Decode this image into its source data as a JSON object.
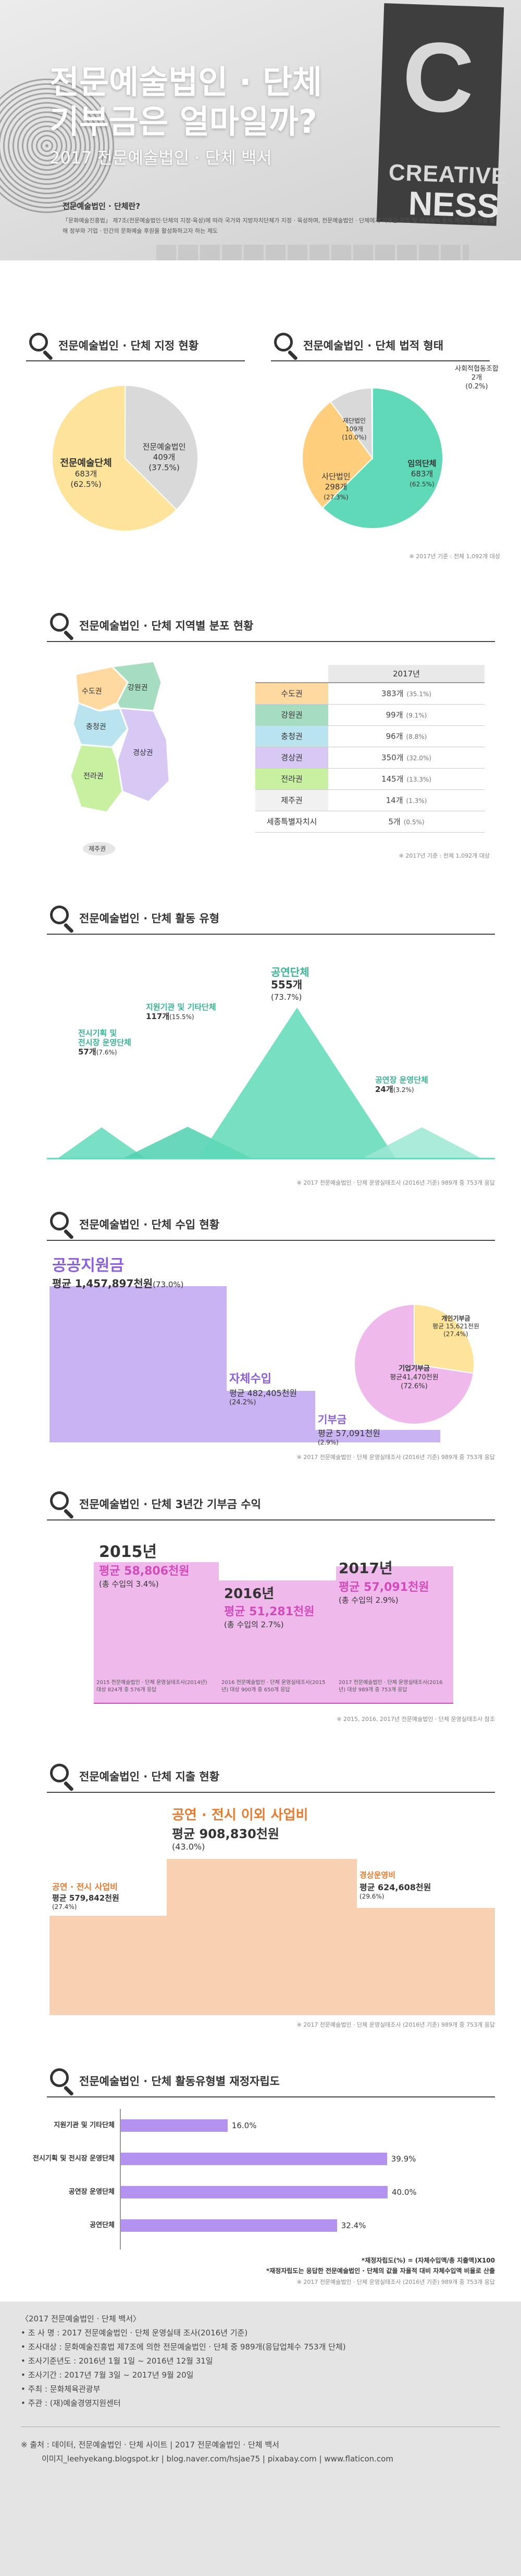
{
  "hero": {
    "title_line1": "전문예술법인 · 단체",
    "title_line2": "기부금은 얼마일까?",
    "subtitle": "2017 전문예술법인 · 단체 백서",
    "sticky_letter": "C",
    "sticky_word1": "CREATIVE",
    "sticky_word2": "NESS",
    "definition_title": "전문예술법인 · 단체란?",
    "definition_text": "「문화예술진흥법」 제7조(전문예술법인·단체의 지정·육성)에 따라 국가와 지방자치단체가 지정 · 육성하며, 전문예술법인 · 단체에게 기부금 모집 및 세제혜택 등의 제도적 지원을 통해 정부와 기업 · 민간의 문화예술 후원을 활성화하고자 하는 제도"
  },
  "sec1": {
    "title_left": "전문예술법인 · 단체 지정 현황",
    "title_right": "전문예술법인 · 단체 법적 형태",
    "source": "※ 2017년 기준 : 전체 1,092개 대상"
  },
  "chart_designation": {
    "type": "pie",
    "slices": [
      {
        "name": "전문예술단체",
        "value": 683,
        "value_text": "683개",
        "pct_text": "(62.5%)",
        "color": "#fde49a"
      },
      {
        "name": "전문예술법인",
        "value": 409,
        "value_text": "409개",
        "pct_text": "(37.5%)",
        "color": "#d9d9d9"
      }
    ]
  },
  "chart_legal": {
    "type": "pie",
    "slices": [
      {
        "name": "임의단체",
        "value": 683,
        "value_text": "683개",
        "pct_text": "(62.5%)",
        "color": "#5fd9b7"
      },
      {
        "name": "사단법인",
        "value": 298,
        "value_text": "298개",
        "pct_text": "(27.3%)",
        "color": "#ffcf7e"
      },
      {
        "name": "재단법인",
        "value": 109,
        "value_text": "109개",
        "pct_text": "(10.0%)",
        "color": "#d9d9d9"
      },
      {
        "name": "사회적협동조합",
        "value": 2,
        "value_text": "2개",
        "pct_text": "(0.2%)",
        "color": "#9a9a9a"
      }
    ]
  },
  "sec2": {
    "title": "전문예술법인 · 단체 지역별 분포 현황",
    "year_header": "2017년",
    "source": "※ 2017년 기준 : 전체 1,092개 대상",
    "regions": [
      {
        "name": "수도권",
        "value": "383개",
        "pct": "(35.1%)",
        "color": "#ffd9a0"
      },
      {
        "name": "강원권",
        "value": "99개",
        "pct": "(9.1%)",
        "color": "#a6ddc1"
      },
      {
        "name": "충청권",
        "value": "96개",
        "pct": "(8.8%)",
        "color": "#b9e4ef"
      },
      {
        "name": "경상권",
        "value": "350개",
        "pct": "(32.0%)",
        "color": "#d7c9f4"
      },
      {
        "name": "전라권",
        "value": "145개",
        "pct": "(13.3%)",
        "color": "#c7f0a0"
      },
      {
        "name": "제주권",
        "value": "14개",
        "pct": "(1.3%)",
        "color": "#f1f1f1"
      },
      {
        "name": "세종특별자치시",
        "value": "5개",
        "pct": "(0.5%)",
        "color": "#ffffff"
      }
    ],
    "map_labels": [
      "수도권",
      "강원권",
      "충청권",
      "경상권",
      "전라권",
      "제주권"
    ]
  },
  "sec3": {
    "title": "전문예술법인 · 단체 활동 유형",
    "source": "※ 2017 전문예술법인 · 단체 운영실태조사 (2016년 기준) 989개 중 753개 응답",
    "items": [
      {
        "name_line1": "전시기획 및",
        "name_line2": "전시장 운영단체",
        "value": 57,
        "value_text": "57개",
        "pct": "(7.6%)"
      },
      {
        "name_line1": "지원기관 및 기타단체",
        "name_line2": "",
        "value": 117,
        "value_text": "117개",
        "pct": "(15.5%)"
      },
      {
        "name_line1": "공연단체",
        "name_line2": "",
        "value": 555,
        "value_text": "555개",
        "pct": "(73.7%)"
      },
      {
        "name_line1": "공연장 운영단체",
        "name_line2": "",
        "value": 24,
        "value_text": "24개",
        "pct": "(3.2%)"
      }
    ]
  },
  "sec4": {
    "title": "전문예술법인 · 단체 수입 현황",
    "source": "※ 2017 전문예술법인 · 단체 운영실태조사 (2016년 기준) 989개 중 753개 응답",
    "bars": [
      {
        "name": "공공지원금",
        "value": 1457897,
        "text": "평균 1,457,897천원",
        "pct": "(73.0%)"
      },
      {
        "name": "자체수입",
        "value": 482405,
        "text": "평균 482,405천원",
        "pct": "(24.2%)"
      },
      {
        "name": "기부금",
        "value": 57091,
        "text": "평균 57,091천원",
        "pct": "(2.9%)"
      }
    ],
    "donut": [
      {
        "name": "개인기부금",
        "text": "평균 15,621천원",
        "pct": "(27.4%)",
        "color": "#fde49a"
      },
      {
        "name": "기업기부금",
        "text": "평균41,470천원",
        "pct": "(72.6%)",
        "color": "#efb9ec"
      }
    ]
  },
  "sec5": {
    "title": "전문예술법인 · 단체 3년간 기부금 수익",
    "source": "※ 2015, 2016, 2017년 전문예술법인 · 단체 운영실태조사 참조",
    "years": [
      {
        "year": "2015년",
        "value": 58806,
        "avg": "평균 58,806천원",
        "share": "(총 수입의 3.4%)",
        "note": "2015 전문예술법인 · 단체 운영실태조사(2014년) 대상 824개 중 576개 응답"
      },
      {
        "year": "2016년",
        "value": 51281,
        "avg": "평균 51,281천원",
        "share": "(총 수입의 2.7%)",
        "note": "2016 전문예술법인 · 단체 운영실태조사(2015년) 대상 900개 중 650개 응답"
      },
      {
        "year": "2017년",
        "value": 57091,
        "avg": "평균 57,091천원",
        "share": "(총 수입의 2.9%)",
        "note": "2017 전문예술법인 · 단체 운영실태조사(2016년) 대상 989개 중 753개 응답"
      }
    ]
  },
  "sec6": {
    "title": "전문예술법인 · 단체 지출 현황",
    "source": "※ 2017 전문예술법인 · 단체 운영실태조사 (2016년 기준) 989개 중 753개 응답",
    "bars": [
      {
        "name": "공연 · 전시 사업비",
        "value": 579842,
        "text": "평균 579,842천원",
        "pct": "(27.4%)"
      },
      {
        "name": "공연 · 전시 이외 사업비",
        "value": 908830,
        "text": "평균 908,830천원",
        "pct": "(43.0%)"
      },
      {
        "name": "경상운영비",
        "value": 624608,
        "text": "평균 624,608천원",
        "pct": "(29.6%)"
      }
    ]
  },
  "sec7": {
    "title": "전문예술법인 · 단체 활동유형별 재정자립도",
    "note1": "*재정자립도(%) = (자체수입액/총 지출액)X100",
    "note2": "*재정자립도는 응답한 전문예술법인 · 단체의 값을 자율적 대비 자체수입액 비율로 산출",
    "source": "※ 2017 전문예술법인 · 단체 운영실태조사 (2016년 기준) 989개 중 753개 응답",
    "bars": [
      {
        "name": "지원기관 및 기타단체",
        "value": 16.0,
        "text": "16.0%"
      },
      {
        "name": "전시기획 및 전시장 운영단체",
        "value": 39.9,
        "text": "39.9%"
      },
      {
        "name": "공연장 운영단체",
        "value": 40.0,
        "text": "40.0%"
      },
      {
        "name": "공연단체",
        "value": 32.4,
        "text": "32.4%"
      }
    ]
  },
  "footer": {
    "title": "〈2017 전문예술법인 · 단체 백서〉",
    "lines": [
      "• 조 사 명 : 2017 전문예술법인 · 단체 운영실태 조사(2016년 기준)",
      "• 조사대상 : 문화예술진흥법 제7조에 의한 전문예술법인 · 단체 중 989개(응답업체수 753개 단체)",
      "• 조사기준년도 : 2016년 1월 1일 ~ 2016년 12월 31일",
      "• 조사기간 : 2017년 7월 3일 ~ 2017년 9월 20일",
      "• 주최 : 문화체육관광부",
      "• 주관 : (재)예술경영지원센터"
    ],
    "source_line": "※ 출처 : 데이터, 전문예술법인 · 단체 사이트 | 2017 전문예술법인 · 단체 백서",
    "credit_line": "이미지_leehyekang.blogspot.kr | blog.naver.com/hsjae75 | pixabay.com | www.flaticon.com"
  }
}
